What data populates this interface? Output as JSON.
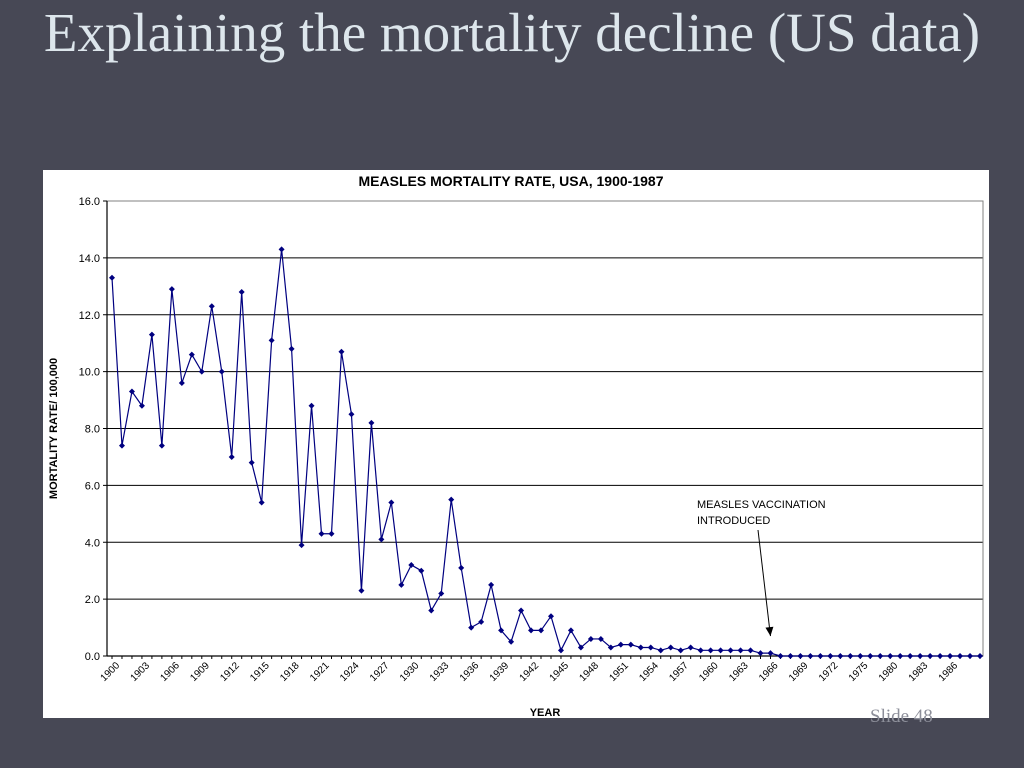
{
  "slide": {
    "title": "Explaining the mortality decline (US data)",
    "slide_number": "Slide 48"
  },
  "colors": {
    "background": "#474855",
    "title_text": "#dde6ec",
    "series": "#000080"
  },
  "chart_data": {
    "type": "line",
    "title": "MEASLES MORTALITY RATE, USA, 1900-1987",
    "xlabel": "YEAR",
    "ylabel": "MORTALITY RATE/ 100,000",
    "ylim": [
      0,
      16
    ],
    "yticks": [
      "0.0",
      "2.0",
      "4.0",
      "6.0",
      "8.0",
      "10.0",
      "12.0",
      "14.0",
      "16.0"
    ],
    "xticks": [
      "1900",
      "1903",
      "1906",
      "1909",
      "1912",
      "1915",
      "1918",
      "1921",
      "1924",
      "1927",
      "1930",
      "1933",
      "1936",
      "1939",
      "1942",
      "1945",
      "1948",
      "1951",
      "1954",
      "1957",
      "1960",
      "1963",
      "1966",
      "1969",
      "1972",
      "1975",
      "1980",
      "1983",
      "1986"
    ],
    "grid": true,
    "x": [
      1900,
      1901,
      1902,
      1903,
      1904,
      1905,
      1906,
      1907,
      1908,
      1909,
      1910,
      1911,
      1912,
      1913,
      1914,
      1915,
      1916,
      1917,
      1918,
      1919,
      1920,
      1921,
      1922,
      1923,
      1924,
      1925,
      1926,
      1927,
      1928,
      1929,
      1930,
      1931,
      1932,
      1933,
      1934,
      1935,
      1936,
      1937,
      1938,
      1939,
      1940,
      1941,
      1942,
      1943,
      1944,
      1945,
      1946,
      1947,
      1948,
      1949,
      1950,
      1951,
      1952,
      1953,
      1954,
      1955,
      1956,
      1957,
      1958,
      1959,
      1960,
      1961,
      1962,
      1963,
      1964,
      1965,
      1966,
      1967,
      1968,
      1969,
      1970,
      1971,
      1972,
      1973,
      1974,
      1975,
      1976,
      1977,
      1978,
      1979,
      1980,
      1981,
      1982,
      1983,
      1984,
      1985,
      1986,
      1987
    ],
    "series": [
      {
        "values": [
          13.3,
          7.4,
          9.3,
          8.8,
          11.3,
          7.4,
          12.9,
          9.6,
          10.6,
          10.0,
          12.3,
          10.0,
          7.0,
          12.8,
          6.8,
          5.4,
          11.1,
          14.3,
          10.8,
          3.9,
          8.8,
          4.3,
          4.3,
          10.7,
          8.5,
          2.3,
          8.2,
          4.1,
          5.4,
          2.5,
          3.2,
          3.0,
          1.6,
          2.2,
          5.5,
          3.1,
          1.0,
          1.2,
          2.5,
          0.9,
          0.5,
          1.6,
          0.9,
          0.9,
          1.4,
          0.2,
          0.9,
          0.3,
          0.6,
          0.6,
          0.3,
          0.4,
          0.4,
          0.3,
          0.3,
          0.2,
          0.3,
          0.2,
          0.3,
          0.2,
          0.2,
          0.2,
          0.2,
          0.2,
          0.2,
          0.1,
          0.1,
          0.0,
          0.0,
          0.0,
          0.0,
          0.0,
          0.0,
          0.0,
          0.0,
          0.0,
          0.0,
          0.0,
          0.0,
          0.0,
          0.0,
          0.0,
          0.0,
          0.0,
          0.0,
          0.0,
          0.0,
          0.0
        ]
      }
    ],
    "annotations": [
      {
        "text_line1": "MEASLES VACCINATION",
        "text_line2": "INTRODUCED",
        "points_to_year": 1966,
        "points_to_value": 0.7
      }
    ]
  }
}
